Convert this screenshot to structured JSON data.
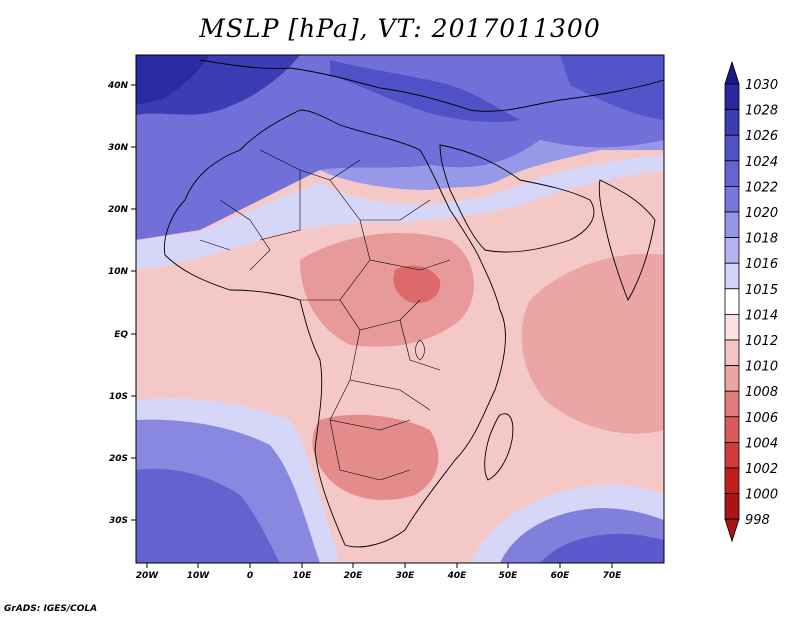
{
  "title": "MSLP [hPa], VT: 2017011300",
  "credit": "GrADS: IGES/COLA",
  "map": {
    "lon_labels": [
      "20W",
      "10W",
      "0",
      "10E",
      "20E",
      "30E",
      "40E",
      "50E",
      "60E",
      "70E"
    ],
    "lat_labels": [
      "40N",
      "30N",
      "20N",
      "10N",
      "EQ",
      "10S",
      "20S",
      "30S"
    ]
  },
  "colorbar": {
    "levels": [
      "1030",
      "1028",
      "1026",
      "1024",
      "1022",
      "1020",
      "1018",
      "1016",
      "1015",
      "1014",
      "1012",
      "1010",
      "1008",
      "1006",
      "1004",
      "1002",
      "1000",
      "998"
    ],
    "colors": [
      "#1a1a8c",
      "#2828a0",
      "#3c3cb4",
      "#5050c8",
      "#6464d2",
      "#7878dc",
      "#9696e6",
      "#b4b4f0",
      "#d2d2fa",
      "#ffffff",
      "#fae1e1",
      "#f5c3c3",
      "#eba5a5",
      "#e17d7d",
      "#dc5a5a",
      "#d23c3c",
      "#c31e1e",
      "#aa1414"
    ]
  }
}
